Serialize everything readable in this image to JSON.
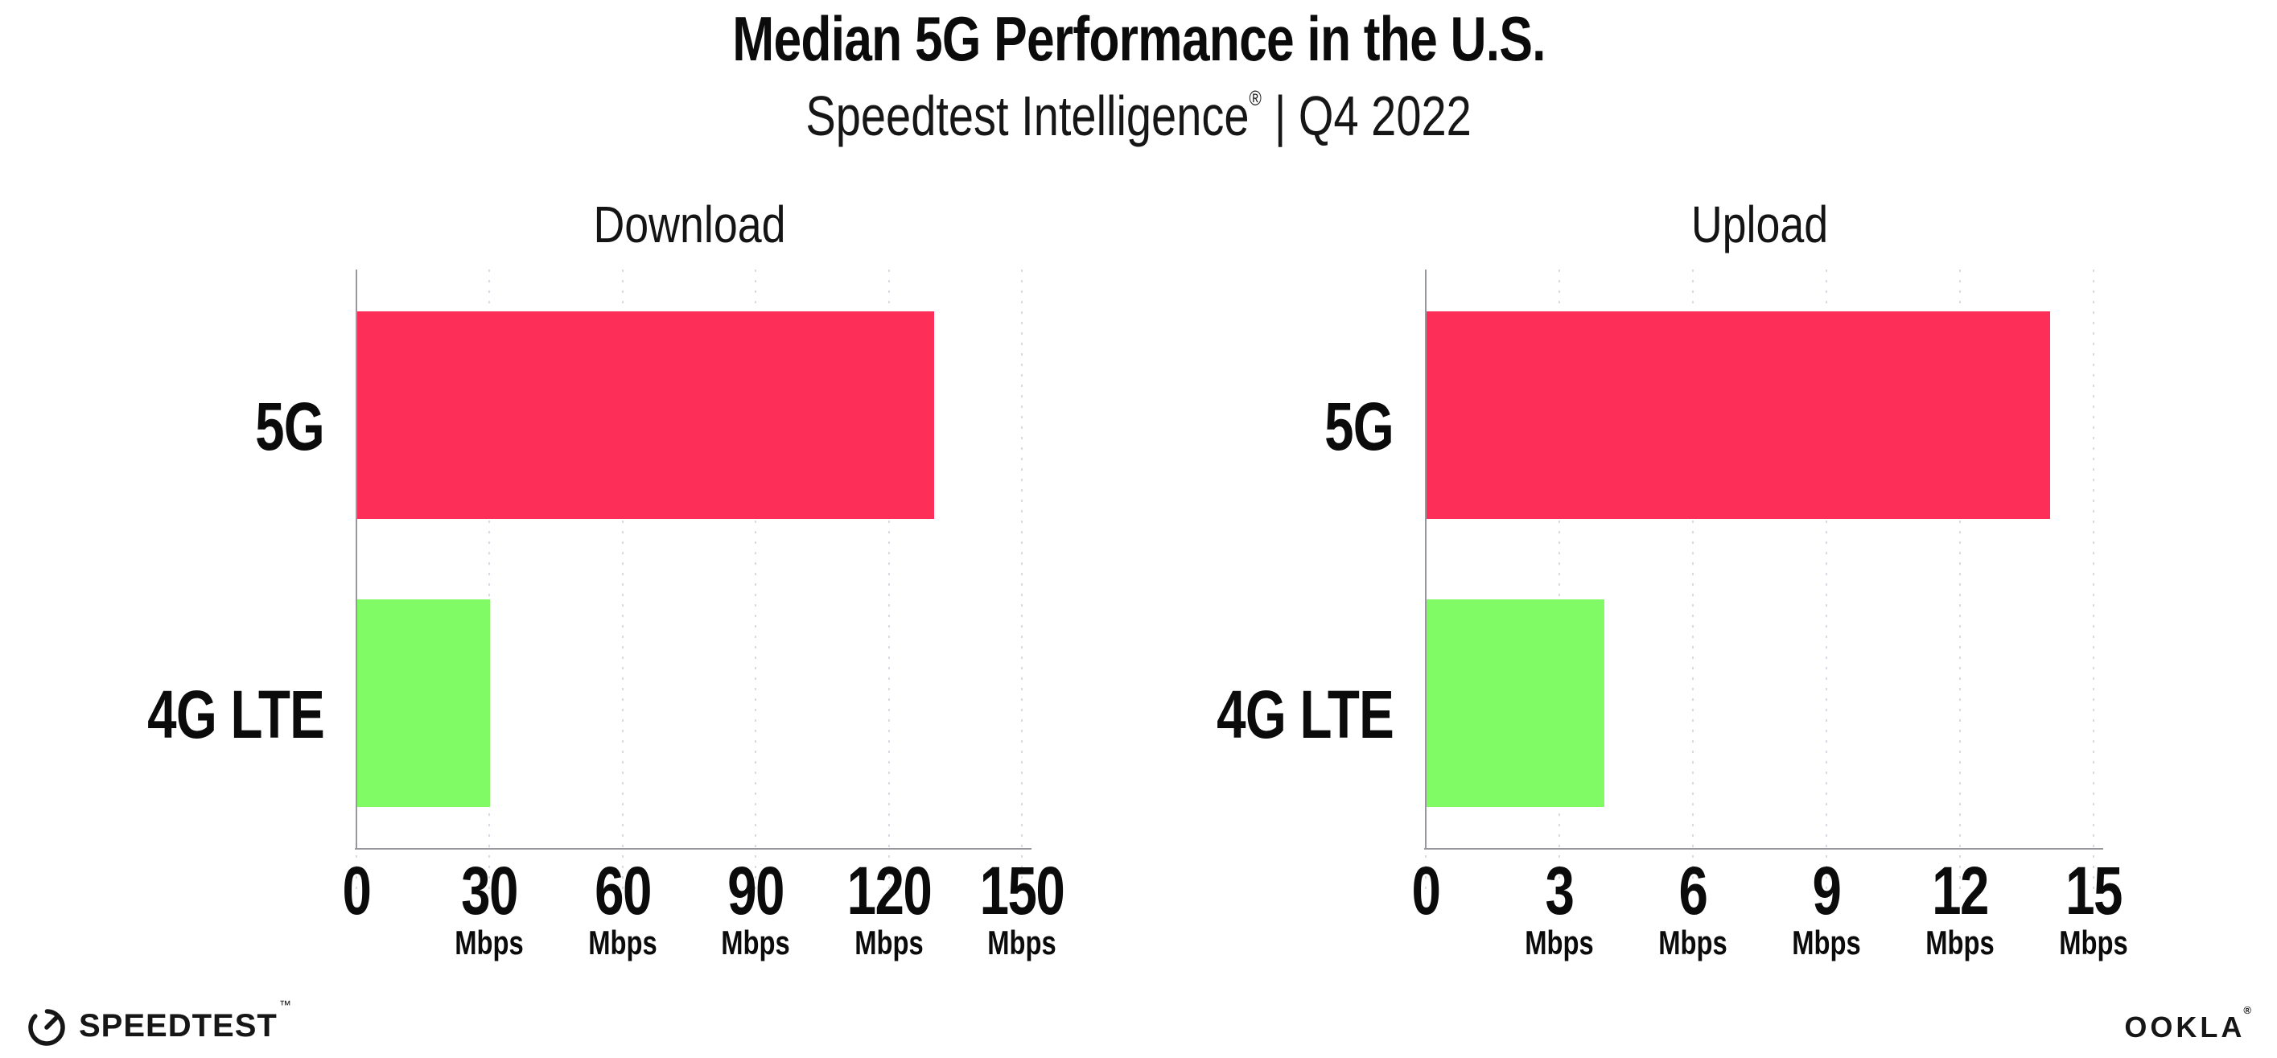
{
  "header": {
    "title": "Median 5G Performance in the U.S.",
    "subtitle_brand": "Speedtest Intelligence",
    "subtitle_reg": "®",
    "subtitle_rest": "| Q4 2022"
  },
  "footer": {
    "speedtest_label": "SPEEDTEST",
    "speedtest_tm": "™",
    "ookla_label": "OOKLA",
    "ookla_reg": "®"
  },
  "colors": {
    "bar_5g": "#fd2e57",
    "bar_4g_lte": "#80fa65",
    "axis": "#97979d",
    "gridline": "#d8d9e4",
    "text": "#0b0b0b"
  },
  "chart_data": [
    {
      "type": "bar",
      "orientation": "horizontal",
      "title": "Download",
      "categories": [
        "5G",
        "4G LTE"
      ],
      "values": [
        130,
        30
      ],
      "unit": "Mbps",
      "tick_unit": "Mbps",
      "xlim": [
        0,
        150
      ],
      "xticks": [
        0,
        30,
        60,
        90,
        120,
        150
      ],
      "bar_colors": [
        "#fd2e57",
        "#80fa65"
      ],
      "grid": "dotted vertical at major ticks",
      "legend": "none"
    },
    {
      "type": "bar",
      "orientation": "horizontal",
      "title": "Upload",
      "categories": [
        "5G",
        "4G LTE"
      ],
      "values": [
        14,
        4
      ],
      "unit": "Mbps",
      "tick_unit": "Mbps",
      "xlim": [
        0,
        15
      ],
      "xticks": [
        0,
        3,
        6,
        9,
        12,
        15
      ],
      "bar_colors": [
        "#fd2e57",
        "#80fa65"
      ],
      "grid": "dotted vertical at major ticks",
      "legend": "none"
    }
  ]
}
